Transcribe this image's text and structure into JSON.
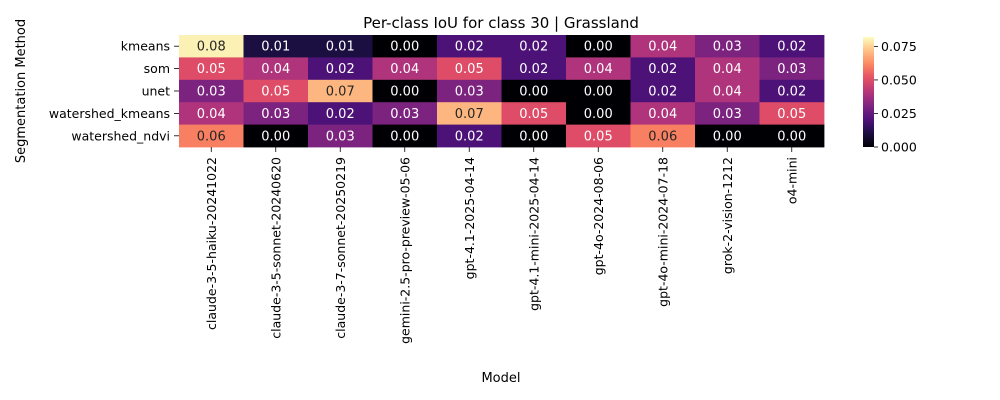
{
  "chart_data": {
    "type": "heatmap",
    "title": "Per-class IoU for class 30 | Grassland",
    "xlabel": "Model",
    "ylabel": "Segmentation Method",
    "x_categories": [
      "claude-3-5-haiku-20241022",
      "claude-3-5-sonnet-20240620",
      "claude-3-7-sonnet-20250219",
      "gemini-2.5-pro-preview-05-06",
      "gpt-4.1-2025-04-14",
      "gpt-4.1-mini-2025-04-14",
      "gpt-4o-2024-08-06",
      "gpt-4o-mini-2024-07-18",
      "grok-2-vision-1212",
      "o4-mini"
    ],
    "y_categories": [
      "kmeans",
      "som",
      "unet",
      "watershed_kmeans",
      "watershed_ndvi"
    ],
    "values": [
      [
        0.08,
        0.01,
        0.01,
        0.0,
        0.02,
        0.02,
        0.0,
        0.04,
        0.03,
        0.02
      ],
      [
        0.05,
        0.04,
        0.02,
        0.04,
        0.05,
        0.02,
        0.04,
        0.02,
        0.04,
        0.03
      ],
      [
        0.03,
        0.05,
        0.07,
        0.0,
        0.03,
        0.0,
        0.0,
        0.02,
        0.04,
        0.02
      ],
      [
        0.04,
        0.03,
        0.02,
        0.03,
        0.07,
        0.05,
        0.0,
        0.04,
        0.03,
        0.05
      ],
      [
        0.06,
        0.0,
        0.03,
        0.0,
        0.02,
        0.0,
        0.05,
        0.06,
        0.0,
        0.0
      ]
    ],
    "labels": [
      [
        "0.08",
        "0.01",
        "0.01",
        "0.00",
        "0.02",
        "0.02",
        "0.00",
        "0.04",
        "0.03",
        "0.02"
      ],
      [
        "0.05",
        "0.04",
        "0.02",
        "0.04",
        "0.05",
        "0.02",
        "0.04",
        "0.02",
        "0.04",
        "0.03"
      ],
      [
        "0.03",
        "0.05",
        "0.07",
        "0.00",
        "0.03",
        "0.00",
        "0.00",
        "0.02",
        "0.04",
        "0.02"
      ],
      [
        "0.04",
        "0.03",
        "0.02",
        "0.03",
        "0.07",
        "0.05",
        "0.00",
        "0.04",
        "0.03",
        "0.05"
      ],
      [
        "0.06",
        "0.00",
        "0.03",
        "0.00",
        "0.02",
        "0.00",
        "0.05",
        "0.06",
        "0.00",
        "0.00"
      ]
    ],
    "colormap": "magma",
    "colorbar": {
      "range": [
        0,
        0.082
      ],
      "ticks": [
        0.0,
        0.025,
        0.05,
        0.075
      ],
      "tick_labels": [
        "0.000",
        "0.025",
        "0.050",
        "0.075"
      ]
    },
    "grid": false,
    "legend": "colorbar-right"
  }
}
